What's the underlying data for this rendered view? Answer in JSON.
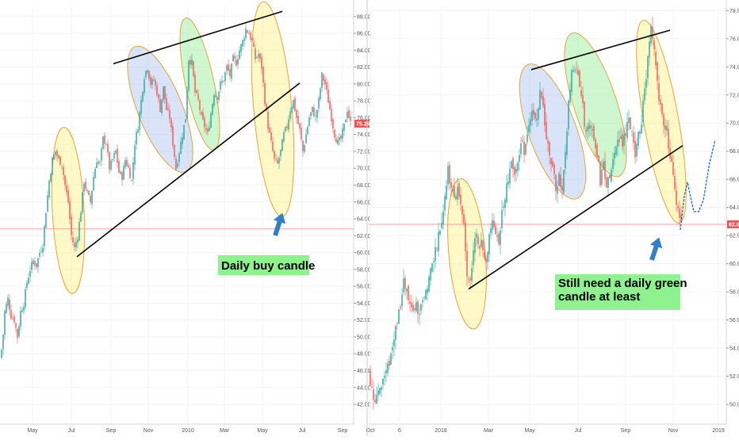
{
  "chart_data": [
    {
      "type": "candlestick",
      "y_ticks": [
        "42.00",
        "44.00",
        "46.00",
        "48.00",
        "50.00",
        "52.00",
        "54.00",
        "56.00",
        "58.00",
        "60.00",
        "62.00",
        "64.00",
        "66.00",
        "68.00",
        "70.00",
        "72.00",
        "74.00",
        "76.00",
        "78.00",
        "80.00",
        "82.00",
        "84.00",
        "86.00",
        "88.00"
      ],
      "ylim": [
        40.5,
        89.2
      ],
      "x_ticks": [
        "May",
        "Jul",
        "Sep",
        "Nov",
        "2010",
        "Mar",
        "May",
        "Jul",
        "Sep"
      ],
      "last_price": "75.29",
      "last_price_value": 75.29,
      "horizontal_line_value": 62.8,
      "note": "Daily buy candle",
      "close_path": [
        [
          0,
          47.5
        ],
        [
          3,
          49
        ],
        [
          6,
          53
        ],
        [
          10,
          54.5
        ],
        [
          14,
          52.5
        ],
        [
          18,
          52
        ],
        [
          22,
          50
        ],
        [
          26,
          53
        ],
        [
          30,
          54
        ],
        [
          34,
          56.5
        ],
        [
          38,
          58
        ],
        [
          42,
          59
        ],
        [
          46,
          58.5
        ],
        [
          50,
          60
        ],
        [
          54,
          61
        ],
        [
          58,
          65
        ],
        [
          62,
          68.5
        ],
        [
          66,
          71
        ],
        [
          70,
          72
        ],
        [
          74,
          71
        ],
        [
          78,
          70.5
        ],
        [
          82,
          68
        ],
        [
          86,
          66
        ],
        [
          90,
          62
        ],
        [
          94,
          60.5
        ],
        [
          98,
          62
        ],
        [
          102,
          65
        ],
        [
          106,
          68.5
        ],
        [
          110,
          67
        ],
        [
          114,
          66
        ],
        [
          118,
          69
        ],
        [
          122,
          71
        ],
        [
          126,
          70.5
        ],
        [
          130,
          73.5
        ],
        [
          134,
          73
        ],
        [
          138,
          70
        ],
        [
          142,
          71
        ],
        [
          146,
          72
        ],
        [
          150,
          69.5
        ],
        [
          154,
          69
        ],
        [
          158,
          71
        ],
        [
          162,
          70
        ],
        [
          166,
          68.5
        ],
        [
          170,
          73
        ],
        [
          174,
          75
        ],
        [
          178,
          78
        ],
        [
          182,
          81
        ],
        [
          186,
          82
        ],
        [
          190,
          80
        ],
        [
          194,
          80.5
        ],
        [
          198,
          79
        ],
        [
          202,
          77
        ],
        [
          206,
          79.5
        ],
        [
          210,
          77
        ],
        [
          214,
          76
        ],
        [
          218,
          73
        ],
        [
          222,
          70
        ],
        [
          226,
          72
        ],
        [
          230,
          74
        ],
        [
          234,
          76
        ],
        [
          238,
          83
        ],
        [
          242,
          82.5
        ],
        [
          246,
          79
        ],
        [
          250,
          78
        ],
        [
          254,
          76
        ],
        [
          258,
          75
        ],
        [
          262,
          74
        ],
        [
          266,
          76.5
        ],
        [
          270,
          79
        ],
        [
          274,
          78.5
        ],
        [
          278,
          80
        ],
        [
          282,
          80.5
        ],
        [
          286,
          82
        ],
        [
          290,
          81
        ],
        [
          294,
          83
        ],
        [
          298,
          82.5
        ],
        [
          302,
          84
        ],
        [
          306,
          85
        ],
        [
          310,
          86.5
        ],
        [
          314,
          86
        ],
        [
          318,
          85
        ],
        [
          322,
          83
        ],
        [
          326,
          83.5
        ],
        [
          330,
          82
        ],
        [
          334,
          78
        ],
        [
          338,
          75
        ],
        [
          342,
          73
        ],
        [
          346,
          71
        ],
        [
          350,
          70.5
        ],
        [
          354,
          72
        ],
        [
          358,
          74
        ],
        [
          362,
          75
        ],
        [
          366,
          77
        ],
        [
          370,
          78
        ],
        [
          374,
          76
        ],
        [
          378,
          74.5
        ],
        [
          382,
          72
        ],
        [
          386,
          74
        ],
        [
          390,
          76
        ],
        [
          394,
          77
        ],
        [
          398,
          76
        ],
        [
          402,
          78
        ],
        [
          406,
          81
        ],
        [
          410,
          80
        ],
        [
          414,
          78
        ],
        [
          418,
          76
        ],
        [
          422,
          74
        ],
        [
          426,
          73
        ],
        [
          430,
          73.5
        ],
        [
          434,
          75
        ],
        [
          438,
          77
        ],
        [
          442,
          75.3
        ]
      ],
      "ellipses": [
        {
          "type": "yellow",
          "x_index": 86,
          "y_value": 65,
          "rx": 20,
          "ry": 105,
          "rotation": -3
        },
        {
          "type": "blue",
          "x_index": 202,
          "y_value": 77,
          "rx": 28,
          "ry": 85,
          "rotation": -22
        },
        {
          "type": "green",
          "x_index": 252,
          "y_value": 80,
          "rx": 18,
          "ry": 85,
          "rotation": -12
        },
        {
          "type": "yellow",
          "x_index": 344,
          "y_value": 77,
          "rx": 24,
          "ry": 136,
          "rotation": -5
        }
      ],
      "trendlines": [
        {
          "from": [
            143,
            82.4
          ],
          "to": [
            356,
            88.6
          ]
        },
        {
          "from": [
            97,
            59.5
          ],
          "to": [
            378,
            80.1
          ]
        }
      ]
    },
    {
      "type": "candlestick",
      "y_ticks": [
        "50.00",
        "52.00",
        "54.00",
        "56.00",
        "58.00",
        "60.00",
        "62.00",
        "64.00",
        "66.00",
        "68.00",
        "70.00",
        "72.00",
        "74.00",
        "76.00",
        "78.00"
      ],
      "ylim": [
        49.1,
        78.3
      ],
      "x_ticks": [
        "Oct",
        "6",
        "2018",
        "Mar",
        "May",
        "Jul",
        "Sep",
        "Nov",
        "2019"
      ],
      "last_price": "62.80",
      "last_price_value": 62.8,
      "horizontal_line_value": 62.8,
      "note_lines": [
        "Still need a daily green",
        "candle at least"
      ],
      "close_path": [
        [
          0,
          52.5
        ],
        [
          4,
          51
        ],
        [
          8,
          50.5
        ],
        [
          12,
          51
        ],
        [
          16,
          51.5
        ],
        [
          20,
          52
        ],
        [
          24,
          52.5
        ],
        [
          28,
          53.5
        ],
        [
          32,
          55
        ],
        [
          36,
          56
        ],
        [
          40,
          57
        ],
        [
          44,
          58.5
        ],
        [
          48,
          58
        ],
        [
          52,
          57
        ],
        [
          56,
          56.5
        ],
        [
          60,
          57
        ],
        [
          64,
          56
        ],
        [
          68,
          57.5
        ],
        [
          72,
          58
        ],
        [
          76,
          59
        ],
        [
          80,
          60
        ],
        [
          84,
          61
        ],
        [
          88,
          62
        ],
        [
          92,
          63
        ],
        [
          96,
          65
        ],
        [
          100,
          66.5
        ],
        [
          104,
          65.5
        ],
        [
          108,
          64.5
        ],
        [
          112,
          65.5
        ],
        [
          116,
          64
        ],
        [
          120,
          63
        ],
        [
          124,
          59
        ],
        [
          128,
          58.5
        ],
        [
          132,
          61
        ],
        [
          136,
          62
        ],
        [
          140,
          61.5
        ],
        [
          144,
          61
        ],
        [
          148,
          60.5
        ],
        [
          152,
          62
        ],
        [
          156,
          63
        ],
        [
          160,
          62.5
        ],
        [
          164,
          61
        ],
        [
          168,
          64
        ],
        [
          172,
          65
        ],
        [
          176,
          66
        ],
        [
          180,
          67
        ],
        [
          184,
          66.5
        ],
        [
          188,
          67.5
        ],
        [
          192,
          68.5
        ],
        [
          196,
          68
        ],
        [
          200,
          69
        ],
        [
          204,
          70
        ],
        [
          208,
          71
        ],
        [
          212,
          70.5
        ],
        [
          216,
          72
        ],
        [
          220,
          71.5
        ],
        [
          224,
          69
        ],
        [
          228,
          68
        ],
        [
          232,
          66.5
        ],
        [
          236,
          65.5
        ],
        [
          240,
          66
        ],
        [
          244,
          65
        ],
        [
          248,
          67.5
        ],
        [
          252,
          71.5
        ],
        [
          256,
          73.5
        ],
        [
          260,
          74
        ],
        [
          264,
          73.5
        ],
        [
          268,
          72
        ],
        [
          272,
          70
        ],
        [
          276,
          69.5
        ],
        [
          280,
          70
        ],
        [
          284,
          69
        ],
        [
          288,
          68
        ],
        [
          292,
          66
        ],
        [
          296,
          67
        ],
        [
          300,
          65.5
        ],
        [
          304,
          66
        ],
        [
          308,
          67
        ],
        [
          312,
          68.5
        ],
        [
          316,
          69
        ],
        [
          320,
          68.5
        ],
        [
          324,
          69.5
        ],
        [
          328,
          70
        ],
        [
          332,
          69
        ],
        [
          336,
          68
        ],
        [
          340,
          69.5
        ],
        [
          344,
          70
        ],
        [
          348,
          72.5
        ],
        [
          352,
          74.5
        ],
        [
          356,
          76.5
        ],
        [
          360,
          75
        ],
        [
          364,
          73
        ],
        [
          368,
          71
        ],
        [
          372,
          70
        ],
        [
          376,
          69.5
        ],
        [
          380,
          67.5
        ],
        [
          384,
          66.5
        ],
        [
          388,
          64.5
        ],
        [
          392,
          63.5
        ],
        [
          394,
          62.9
        ]
      ],
      "projection": [
        [
          393,
          62.4
        ],
        [
          398,
          64.8
        ],
        [
          402,
          65.8
        ],
        [
          405,
          65
        ],
        [
          410,
          63.7
        ],
        [
          416,
          63.7
        ],
        [
          422,
          64.5
        ],
        [
          430,
          67.2
        ],
        [
          437,
          68.8
        ]
      ],
      "ellipses": [
        {
          "type": "yellow",
          "x_index": 124,
          "y_value": 60.7,
          "rx": 23,
          "ry": 95,
          "rotation": -5
        },
        {
          "type": "blue",
          "x_index": 232,
          "y_value": 69.4,
          "rx": 30,
          "ry": 90,
          "rotation": -20
        },
        {
          "type": "green",
          "x_index": 286,
          "y_value": 71.3,
          "rx": 27,
          "ry": 95,
          "rotation": -18
        },
        {
          "type": "yellow",
          "x_index": 369,
          "y_value": 70.1,
          "rx": 22,
          "ry": 130,
          "rotation": -10
        }
      ],
      "trendlines": [
        {
          "from": [
            205,
            73.8
          ],
          "to": [
            380,
            76.6
          ]
        },
        {
          "from": [
            126,
            58.2
          ],
          "to": [
            396,
            68.4
          ]
        }
      ]
    }
  ],
  "colors": {
    "up": "#26a69a",
    "down": "#ef5350",
    "horizontal_line": "#f4a0a0",
    "price_tag": "#ef5350",
    "yellow_fill": "rgba(255,240,130,0.45)",
    "yellow_stroke": "#e8a33a",
    "blue_fill": "rgba(170,195,240,0.45)",
    "green_fill": "rgba(160,240,160,0.5)",
    "note_bg": "#8ef28e",
    "arrow": "#2f7fc9",
    "projection": "#1565c0"
  },
  "icons": [
    "arrow-up-icon"
  ]
}
